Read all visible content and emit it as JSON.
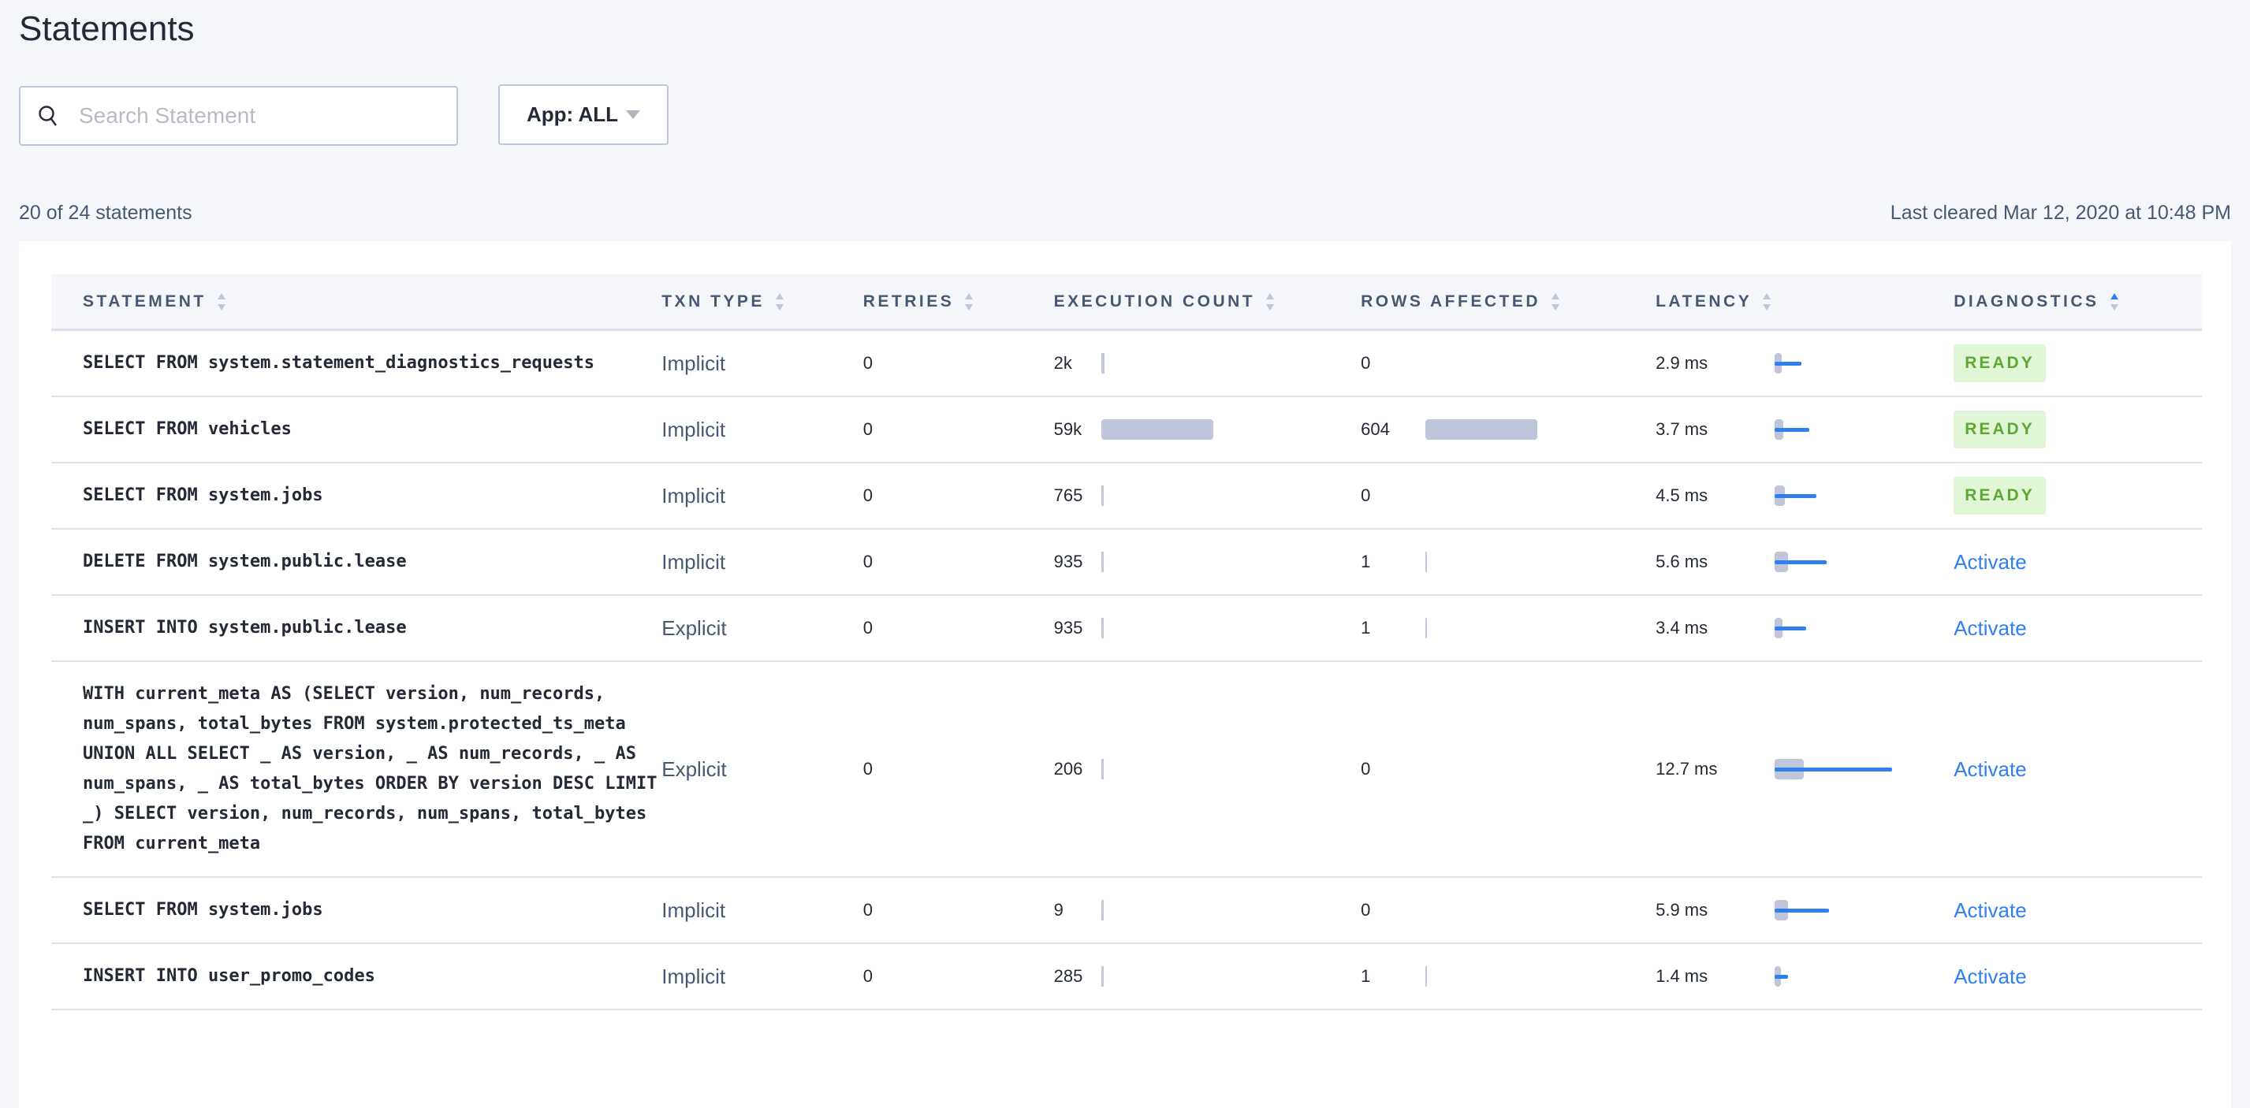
{
  "title": "Statements",
  "search": {
    "placeholder": "Search Statement",
    "value": ""
  },
  "app_filter": {
    "label": "App: ALL"
  },
  "summary": "20 of 24 statements",
  "last_cleared": "Last cleared Mar 12, 2020 at 10:48 PM",
  "colors": {
    "accent": "#2f80ed",
    "ready_bg": "#e0f6d6",
    "ready_text": "#5fa832",
    "bar": "#c0c6d9"
  },
  "columns": [
    "STATEMENT",
    "TXN TYPE",
    "RETRIES",
    "EXECUTION COUNT",
    "ROWS AFFECTED",
    "LATENCY",
    "DIAGNOSTICS"
  ],
  "sorted_column": "DIAGNOSTICS",
  "rows": [
    {
      "statement": "SELECT FROM system.statement_diagnostics_requests",
      "txn": "Implicit",
      "retries": "0",
      "exec": "2k",
      "exec_value": 2000,
      "rows": "0",
      "rows_value": 0,
      "latency": "2.9 ms",
      "latency_value": 2.9,
      "diag": "READY"
    },
    {
      "statement": "SELECT FROM vehicles",
      "txn": "Implicit",
      "retries": "0",
      "exec": "59k",
      "exec_value": 59000,
      "rows": "604",
      "rows_value": 604,
      "latency": "3.7 ms",
      "latency_value": 3.7,
      "diag": "READY"
    },
    {
      "statement": "SELECT FROM system.jobs",
      "txn": "Implicit",
      "retries": "0",
      "exec": "765",
      "exec_value": 765,
      "rows": "0",
      "rows_value": 0,
      "latency": "4.5 ms",
      "latency_value": 4.5,
      "diag": "READY"
    },
    {
      "statement": "DELETE FROM system.public.lease",
      "txn": "Implicit",
      "retries": "0",
      "exec": "935",
      "exec_value": 935,
      "rows": "1",
      "rows_value": 1,
      "latency": "5.6 ms",
      "latency_value": 5.6,
      "diag": "Activate"
    },
    {
      "statement": "INSERT INTO system.public.lease",
      "txn": "Explicit",
      "retries": "0",
      "exec": "935",
      "exec_value": 935,
      "rows": "1",
      "rows_value": 1,
      "latency": "3.4 ms",
      "latency_value": 3.4,
      "diag": "Activate"
    },
    {
      "statement": "WITH current_meta AS (SELECT version, num_records, num_spans, total_bytes FROM system.protected_ts_meta UNION ALL SELECT _ AS version, _ AS num_records, _ AS num_spans, _ AS total_bytes ORDER BY version DESC LIMIT _) SELECT version, num_records, num_spans, total_bytes FROM current_meta",
      "txn": "Explicit",
      "retries": "0",
      "exec": "206",
      "exec_value": 206,
      "rows": "0",
      "rows_value": 0,
      "latency": "12.7 ms",
      "latency_value": 12.7,
      "diag": "Activate"
    },
    {
      "statement": "SELECT FROM system.jobs",
      "txn": "Implicit",
      "retries": "0",
      "exec": "9",
      "exec_value": 9,
      "rows": "0",
      "rows_value": 0,
      "latency": "5.9 ms",
      "latency_value": 5.9,
      "diag": "Activate"
    },
    {
      "statement": "INSERT INTO user_promo_codes",
      "txn": "Implicit",
      "retries": "0",
      "exec": "285",
      "exec_value": 285,
      "rows": "1",
      "rows_value": 1,
      "latency": "1.4 ms",
      "latency_value": 1.4,
      "diag": "Activate"
    }
  ]
}
